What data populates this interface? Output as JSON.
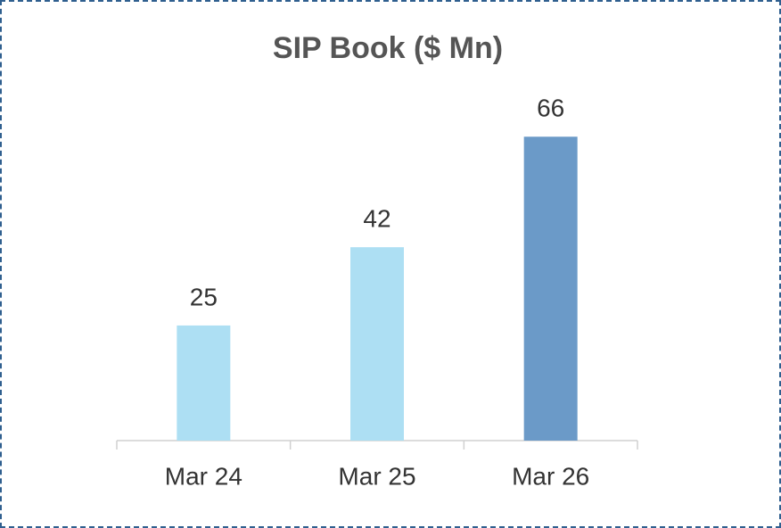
{
  "chart_data": {
    "type": "bar",
    "title": "SIP Book ($ Mn)",
    "categories": [
      "Mar 24",
      "Mar 25",
      "Mar 26"
    ],
    "values": [
      25,
      42,
      66
    ],
    "colors": [
      "#addff3",
      "#addff3",
      "#6b9ac8"
    ],
    "ylim": [
      0,
      80
    ]
  }
}
